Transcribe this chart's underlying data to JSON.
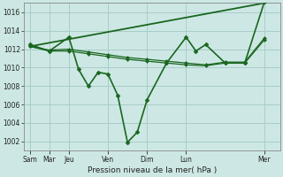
{
  "bg_color": "#cde8e4",
  "grid_color": "#a8ccc8",
  "line_color": "#1a6620",
  "ylim": [
    1001.0,
    1017.0
  ],
  "yticks": [
    1002,
    1004,
    1006,
    1008,
    1010,
    1012,
    1014,
    1016
  ],
  "xlabel": "Pression niveau de la mer( hPa )",
  "xtick_labels": [
    "Sam",
    "Mar",
    "Jeu",
    "Ven",
    "Dim",
    "Lun",
    "Mer"
  ],
  "xtick_pos": [
    0,
    1,
    2,
    4,
    6,
    8,
    12
  ],
  "xlim": [
    -0.3,
    12.8
  ],
  "lines": [
    {
      "x": [
        0,
        1,
        2,
        2.5,
        3,
        3.5,
        4,
        4.5,
        5,
        5.5,
        6,
        7,
        8,
        8.5,
        9,
        10,
        11,
        12
      ],
      "y": [
        1012.5,
        1011.8,
        1013.3,
        1009.8,
        1008.0,
        1009.5,
        1009.3,
        1007.0,
        1001.9,
        1003.0,
        1006.5,
        1010.5,
        1013.3,
        1011.8,
        1012.5,
        1010.5,
        1010.5,
        1017.1
      ],
      "lw": 1.2,
      "marker": "D",
      "ms": 2.5
    },
    {
      "x": [
        0,
        1,
        2,
        3,
        4,
        5,
        6,
        7,
        8,
        9,
        10,
        11,
        12
      ],
      "y": [
        1012.3,
        1011.8,
        1011.8,
        1011.5,
        1011.2,
        1010.9,
        1010.7,
        1010.5,
        1010.3,
        1010.2,
        1010.5,
        1010.5,
        1013.0
      ],
      "lw": 0.9,
      "marker": "D",
      "ms": 2.0
    },
    {
      "x": [
        0,
        1,
        2,
        3,
        4,
        5,
        6,
        7,
        8,
        9,
        10,
        11,
        12
      ],
      "y": [
        1012.3,
        1011.9,
        1012.0,
        1011.7,
        1011.4,
        1011.1,
        1010.9,
        1010.7,
        1010.5,
        1010.3,
        1010.6,
        1010.6,
        1013.2
      ],
      "lw": 0.9,
      "marker": "D",
      "ms": 2.0
    },
    {
      "x": [
        0,
        12
      ],
      "y": [
        1012.3,
        1017.0
      ],
      "lw": 1.3,
      "marker": null,
      "ms": 0
    }
  ]
}
